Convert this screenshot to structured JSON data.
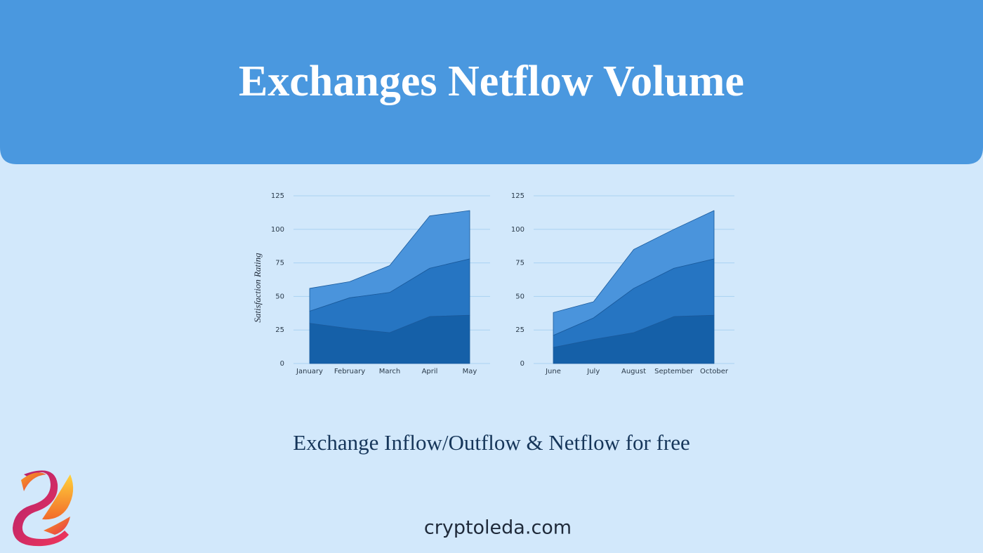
{
  "header": {
    "title": "Exchanges Netflow Volume"
  },
  "chart_data": [
    {
      "type": "area",
      "stacked": true,
      "y_label": "Satisfaction Rating",
      "categories": [
        "January",
        "February",
        "March",
        "April",
        "May"
      ],
      "series": [
        {
          "color": "#1560a8",
          "values": [
            30,
            26,
            23,
            35,
            36
          ]
        },
        {
          "color": "#2675c2",
          "values": [
            9,
            23,
            30,
            36,
            42
          ]
        },
        {
          "color": "#4a94dc",
          "values": [
            17,
            12,
            20,
            39,
            36
          ]
        }
      ],
      "ylim": [
        0,
        125
      ],
      "yticks": [
        0,
        25,
        50,
        75,
        100,
        125
      ],
      "grid": true
    },
    {
      "type": "area",
      "stacked": true,
      "categories": [
        "June",
        "July",
        "August",
        "September",
        "October"
      ],
      "series": [
        {
          "color": "#1560a8",
          "values": [
            12,
            18,
            23,
            35,
            36
          ]
        },
        {
          "color": "#2675c2",
          "values": [
            9,
            16,
            33,
            36,
            42
          ]
        },
        {
          "color": "#4a94dc",
          "values": [
            17,
            12,
            29,
            29,
            36
          ]
        }
      ],
      "ylim": [
        0,
        125
      ],
      "yticks": [
        0,
        25,
        50,
        75,
        100,
        125
      ],
      "grid": true
    }
  ],
  "subtitle": "Exchange Inflow/Outflow & Netflow for free",
  "footer": {
    "website": "cryptoleda.com"
  }
}
